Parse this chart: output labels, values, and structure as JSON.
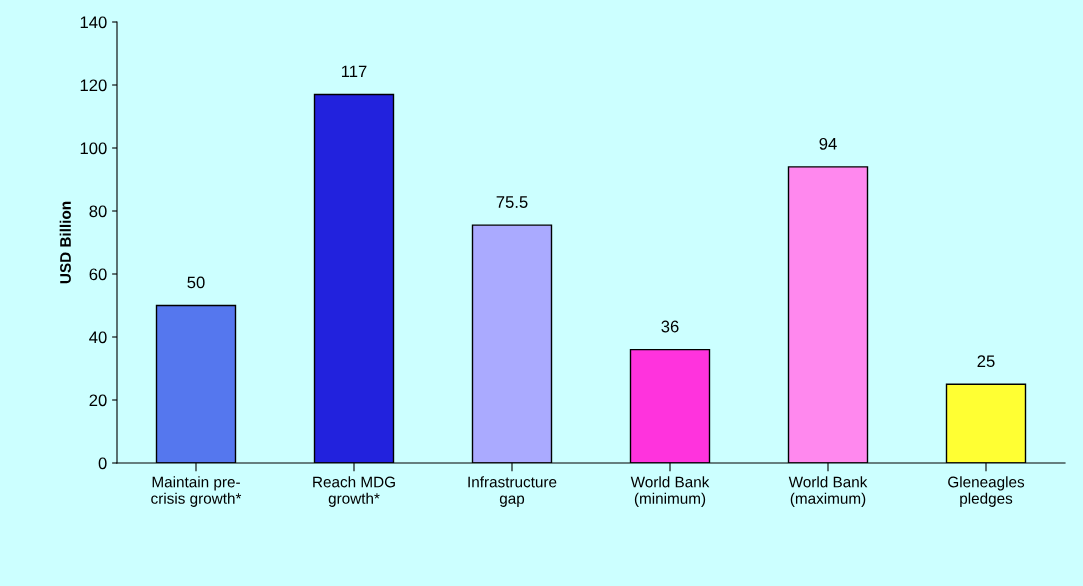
{
  "chart_data": {
    "type": "bar",
    "ylabel": "USD Billion",
    "categories": [
      "Maintain pre-\ncrisis growth*",
      "Reach MDG\ngrowth*",
      "Infrastructure\ngap",
      "World Bank\n(minimum)",
      "World Bank\n(maximum)",
      "Gleneagles\npledges"
    ],
    "values": [
      50,
      117,
      75.5,
      36,
      94,
      25
    ],
    "colors": [
      "#5577ee",
      "#2222dd",
      "#aaaaff",
      "#ff33dd",
      "#ff88ee",
      "#ffff33"
    ],
    "data_labels": true,
    "ylim": [
      0,
      140
    ],
    "yticks": [
      0,
      20,
      40,
      60,
      80,
      100,
      120,
      140
    ],
    "grid": false,
    "legend": false
  }
}
